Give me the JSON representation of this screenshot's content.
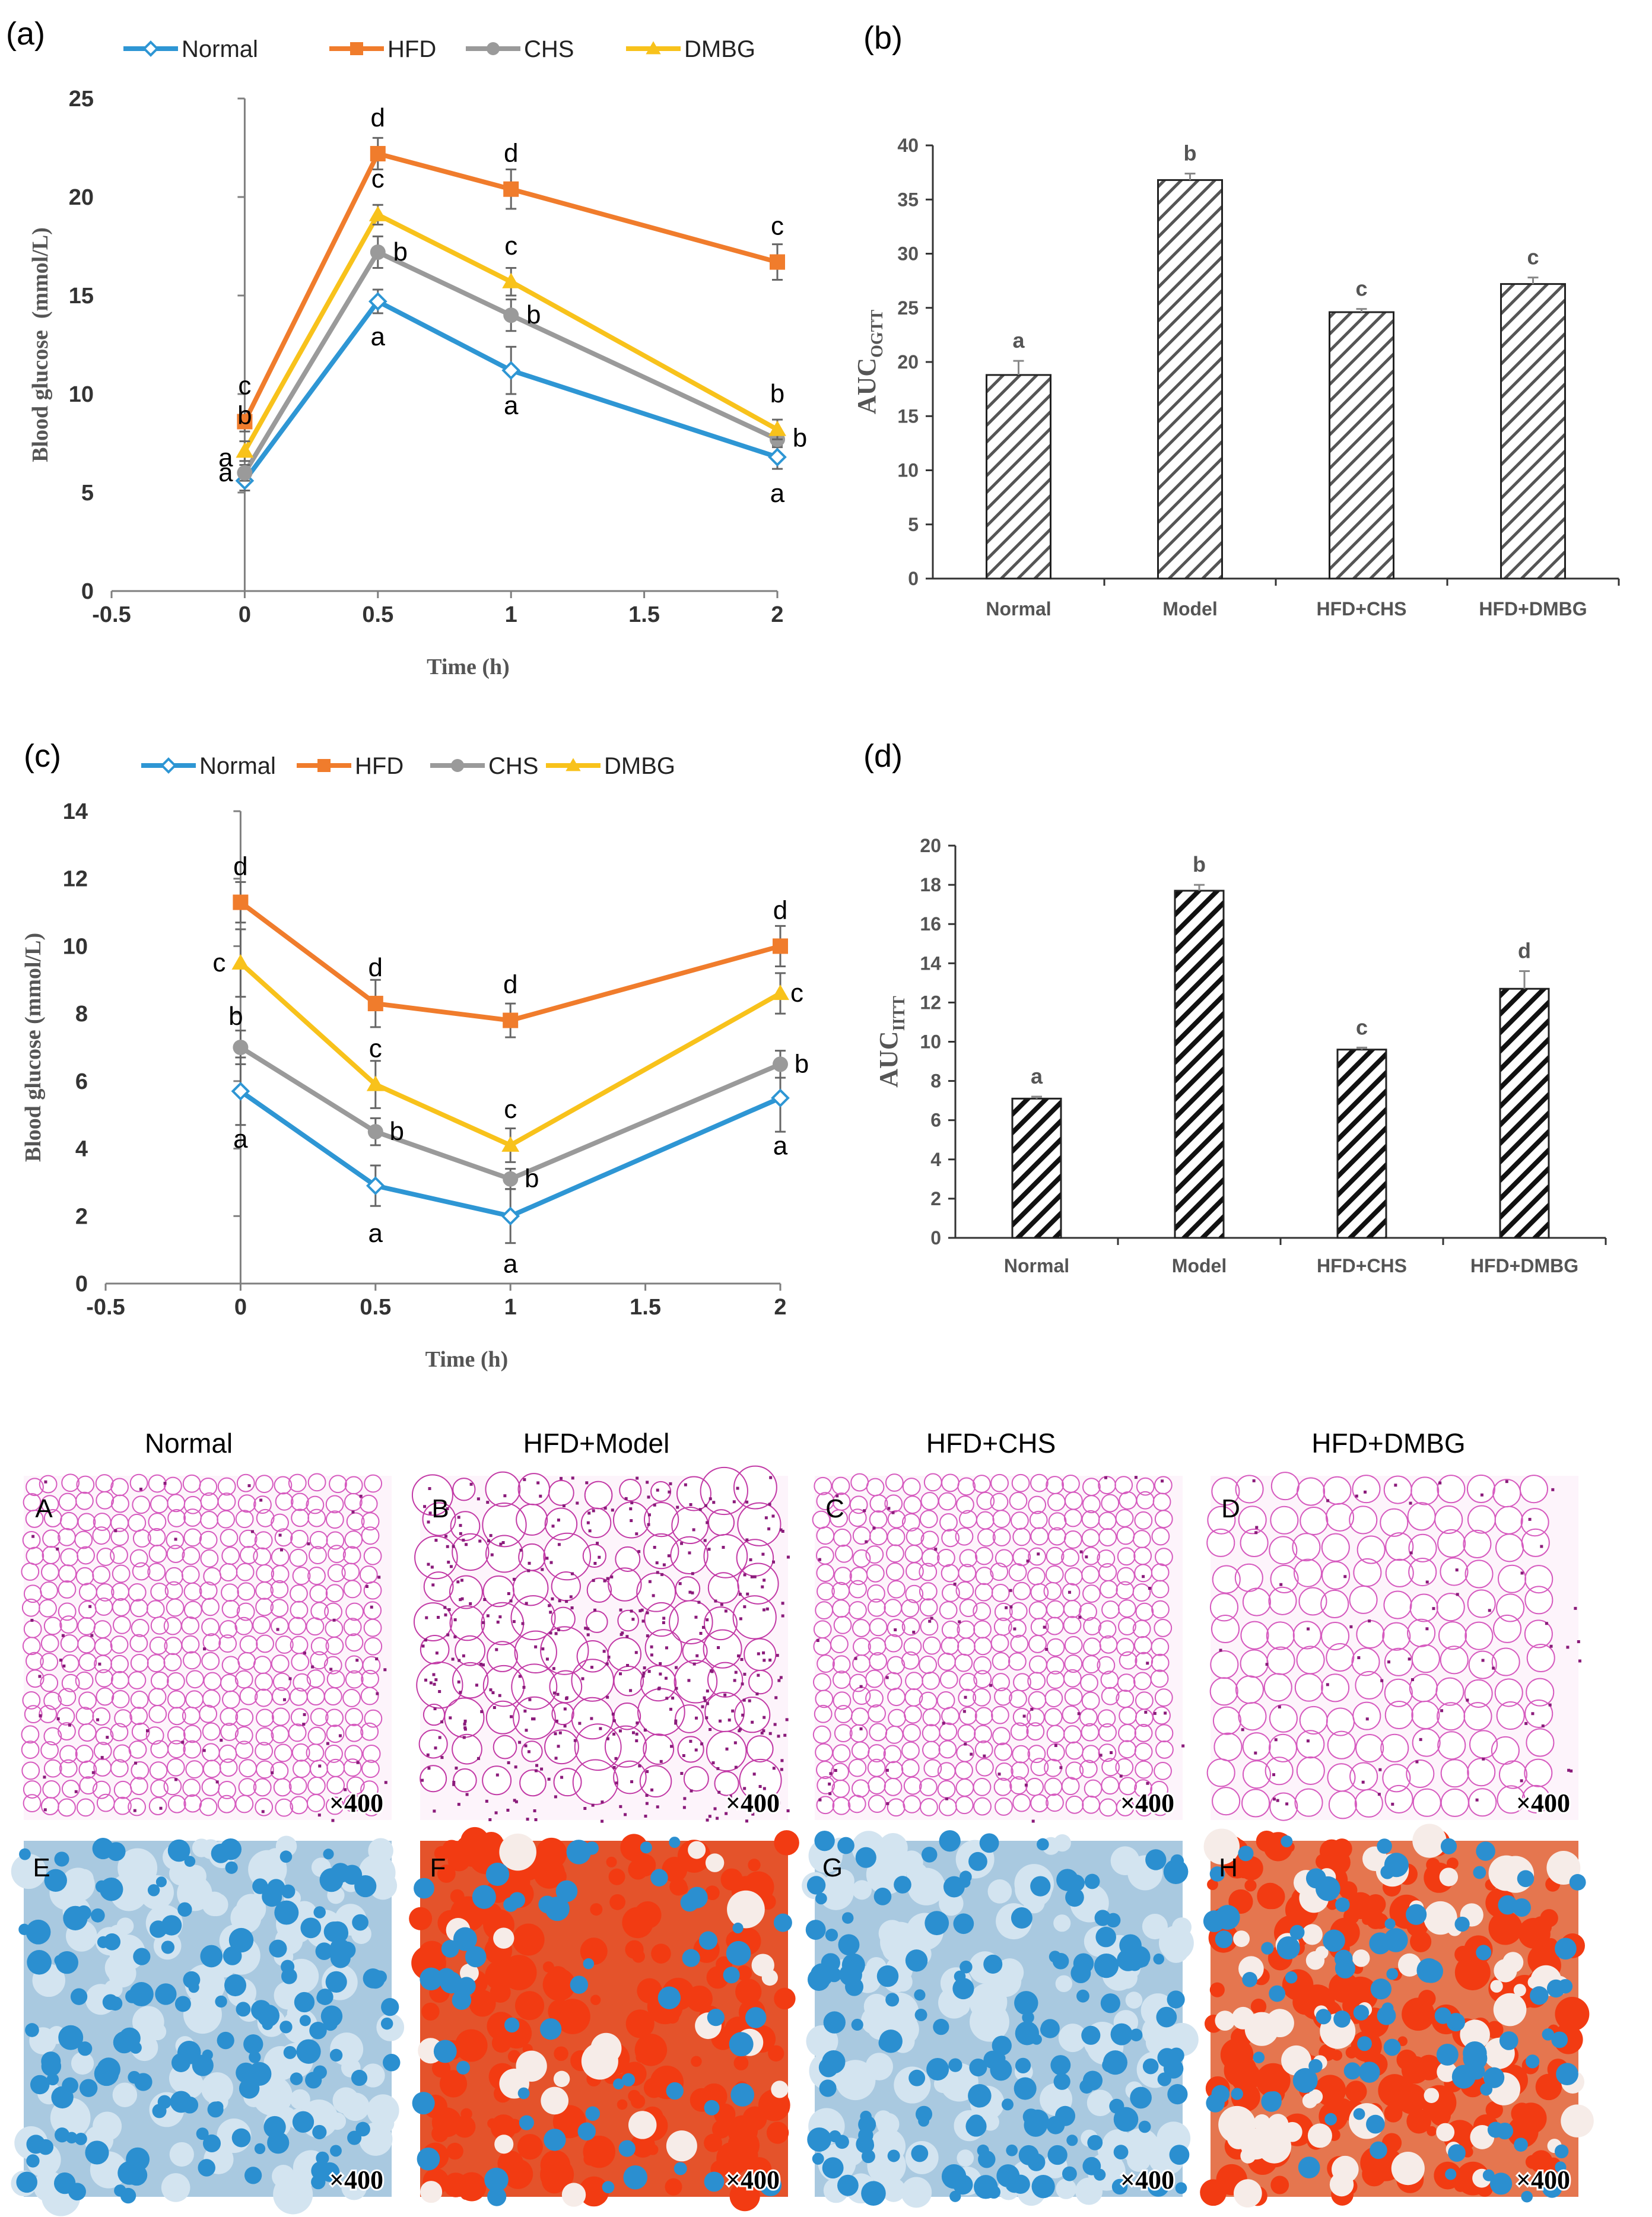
{
  "colors": {
    "Normal": "#2e96d4",
    "HFD": "#f07c2c",
    "CHS": "#9a9a9a",
    "DMBG": "#f8c21b",
    "axis": "#7f7f7f",
    "bar_stroke": "#333333"
  },
  "legend": [
    {
      "key": "Normal",
      "label": "Normal",
      "marker": "diamond"
    },
    {
      "key": "HFD",
      "label": "HFD",
      "marker": "square"
    },
    {
      "key": "CHS",
      "label": "CHS",
      "marker": "circle"
    },
    {
      "key": "DMBG",
      "label": "DMBG",
      "marker": "triangle"
    }
  ],
  "chart_data": [
    {
      "panel": "(a)",
      "type": "line",
      "xlabel": "Time (h)",
      "ylabel": "Blood glucose  (mmol/L)",
      "xlim": [
        -0.5,
        2
      ],
      "ylim": [
        0,
        25
      ],
      "xticks": [
        "-0.5",
        "0",
        "0.5",
        "1",
        "1.5",
        "2"
      ],
      "yticks": [
        "0",
        "5",
        "10",
        "15",
        "20",
        "25"
      ],
      "x": [
        0,
        0.5,
        1,
        2
      ],
      "series": [
        {
          "name": "HFD",
          "values": [
            8.6,
            22.2,
            20.4,
            16.7
          ],
          "err": [
            0.5,
            0.8,
            1.0,
            0.9
          ],
          "labels": [
            "c",
            "d",
            "d",
            "c"
          ]
        },
        {
          "name": "DMBG",
          "values": [
            7.1,
            19.1,
            15.7,
            8.2
          ],
          "err": [
            0.5,
            0.5,
            0.7,
            0.5
          ],
          "labels": [
            "b",
            "c",
            "c",
            "b"
          ]
        },
        {
          "name": "CHS",
          "values": [
            6.0,
            17.2,
            14.0,
            7.7
          ],
          "err": [
            0.4,
            0.8,
            0.8,
            0.4
          ],
          "labels": [
            "a",
            "b",
            "b",
            "b"
          ]
        },
        {
          "name": "Normal",
          "values": [
            5.6,
            14.7,
            11.2,
            6.8
          ],
          "err": [
            0.5,
            0.6,
            1.2,
            0.6
          ],
          "labels": [
            "a",
            "a",
            "a",
            "a"
          ]
        }
      ]
    },
    {
      "panel": "(b)",
      "type": "bar",
      "ylabel": "AUC",
      "ylabel_sub": "OGTT",
      "ylim": [
        0,
        40
      ],
      "yticks": [
        "0",
        "5",
        "10",
        "15",
        "20",
        "25",
        "30",
        "35",
        "40"
      ],
      "categories": [
        "Normal",
        "Model",
        "HFD+CHS",
        "HFD+DMBG"
      ],
      "values": [
        18.8,
        36.8,
        24.6,
        27.2
      ],
      "err": [
        1.3,
        0.6,
        0.3,
        0.6
      ],
      "labels": [
        "a",
        "b",
        "c",
        "c"
      ]
    },
    {
      "panel": "(c)",
      "type": "line",
      "xlabel": "Time (h)",
      "ylabel": "Blood glucose (mmol/L)",
      "xlim": [
        -0.5,
        2
      ],
      "ylim": [
        0,
        14
      ],
      "xticks": [
        "-0.5",
        "0",
        "0.5",
        "1",
        "1.5",
        "2"
      ],
      "yticks": [
        "0",
        "2",
        "4",
        "6",
        "8",
        "10",
        "12",
        "14"
      ],
      "x": [
        0,
        0.5,
        1,
        2
      ],
      "series": [
        {
          "name": "HFD",
          "values": [
            11.3,
            8.3,
            7.8,
            10.0
          ],
          "err": [
            0.6,
            0.7,
            0.5,
            0.6
          ],
          "labels": [
            "d",
            "d",
            "d",
            "d"
          ]
        },
        {
          "name": "DMBG",
          "values": [
            9.5,
            5.9,
            4.1,
            8.6
          ],
          "err": [
            1.0,
            0.7,
            0.5,
            0.6
          ],
          "labels": [
            "c",
            "c",
            "c",
            "c"
          ]
        },
        {
          "name": "CHS",
          "values": [
            7.0,
            4.5,
            3.1,
            6.5
          ],
          "err": [
            0.5,
            0.4,
            0.3,
            0.4
          ],
          "labels": [
            "b",
            "b",
            "b",
            "b"
          ]
        },
        {
          "name": "Normal",
          "values": [
            5.7,
            2.9,
            2.0,
            5.5
          ],
          "err": [
            1.0,
            0.6,
            0.8,
            1.0
          ],
          "labels": [
            "a",
            "a",
            "a",
            "a"
          ]
        }
      ]
    },
    {
      "panel": "(d)",
      "type": "bar",
      "ylabel": "AUC",
      "ylabel_sub": "IITT",
      "ylim": [
        0,
        20
      ],
      "yticks": [
        "0",
        "2",
        "4",
        "6",
        "8",
        "10",
        "12",
        "14",
        "16",
        "18",
        "20"
      ],
      "categories": [
        "Normal",
        "Model",
        "HFD+CHS",
        "HFD+DMBG"
      ],
      "values": [
        7.1,
        17.7,
        9.6,
        12.7
      ],
      "err": [
        0.1,
        0.3,
        0.1,
        0.9
      ],
      "labels": [
        "a",
        "b",
        "c",
        "d"
      ]
    }
  ],
  "histology": {
    "column_titles": [
      "Normal",
      "HFD+Model",
      "HFD+CHS",
      "HFD+DMBG"
    ],
    "he_row": [
      {
        "label": "A",
        "magnification": "×400"
      },
      {
        "label": "B",
        "magnification": "×400"
      },
      {
        "label": "C",
        "magnification": "×400"
      },
      {
        "label": "D",
        "magnification": "×400"
      }
    ],
    "oil_red_row": [
      {
        "label": "E",
        "magnification": "×400"
      },
      {
        "label": "F",
        "magnification": "×400"
      },
      {
        "label": "G",
        "magnification": "×400"
      },
      {
        "label": "H",
        "magnification": "×400"
      }
    ]
  }
}
